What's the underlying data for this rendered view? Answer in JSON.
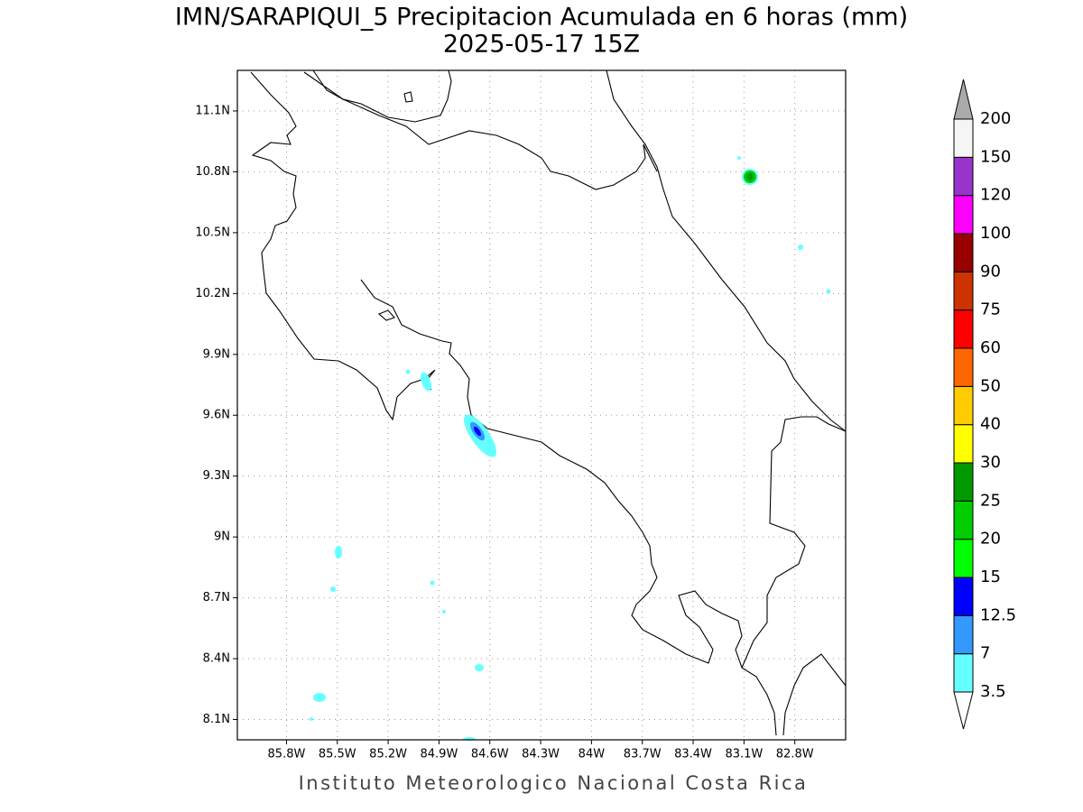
{
  "header": {
    "title": "IMN/SARAPIQUI_5 Precipitacion Acumulada en 6 horas (mm)",
    "subtitle": "2025-05-17 15Z"
  },
  "map": {
    "xlim": [
      -86.09,
      -82.5
    ],
    "ylim": [
      8.0,
      11.3
    ],
    "grid": true,
    "lon_ticks": [
      {
        "value": -85.8,
        "label": "85.8W"
      },
      {
        "value": -85.5,
        "label": "85.5W"
      },
      {
        "value": -85.2,
        "label": "85.2W"
      },
      {
        "value": -84.9,
        "label": "84.9W"
      },
      {
        "value": -84.6,
        "label": "84.6W"
      },
      {
        "value": -84.3,
        "label": "84.3W"
      },
      {
        "value": -84.0,
        "label": "84W"
      },
      {
        "value": -83.7,
        "label": "83.7W"
      },
      {
        "value": -83.4,
        "label": "83.4W"
      },
      {
        "value": -83.1,
        "label": "83.1W"
      },
      {
        "value": -82.8,
        "label": "82.8W"
      }
    ],
    "lat_ticks": [
      {
        "value": 8.1,
        "label": "8.1N"
      },
      {
        "value": 8.4,
        "label": "8.4N"
      },
      {
        "value": 8.7,
        "label": "8.7N"
      },
      {
        "value": 9.0,
        "label": "9N"
      },
      {
        "value": 9.3,
        "label": "9.3N"
      },
      {
        "value": 9.6,
        "label": "9.6N"
      },
      {
        "value": 9.9,
        "label": "9.9N"
      },
      {
        "value": 10.2,
        "label": "10.2N"
      },
      {
        "value": 10.5,
        "label": "10.5N"
      },
      {
        "value": 10.8,
        "label": "10.8N"
      },
      {
        "value": 11.1,
        "label": "11.1N"
      }
    ]
  },
  "colorbar": {
    "levels": [
      3.5,
      7,
      12.5,
      15,
      20,
      25,
      30,
      40,
      50,
      60,
      75,
      90,
      100,
      120,
      150,
      200
    ],
    "colors": [
      "#ffffff",
      "#66ffff",
      "#3399ff",
      "#0000ff",
      "#00ff00",
      "#00cc00",
      "#009900",
      "#ffff00",
      "#ffcc00",
      "#ff6600",
      "#ff0000",
      "#cc3300",
      "#990000",
      "#ff00ff",
      "#9933cc",
      "#f5f5f5",
      "#aaaaaa"
    ]
  },
  "footer": "Instituto Meteorologico Nacional Costa Rica"
}
